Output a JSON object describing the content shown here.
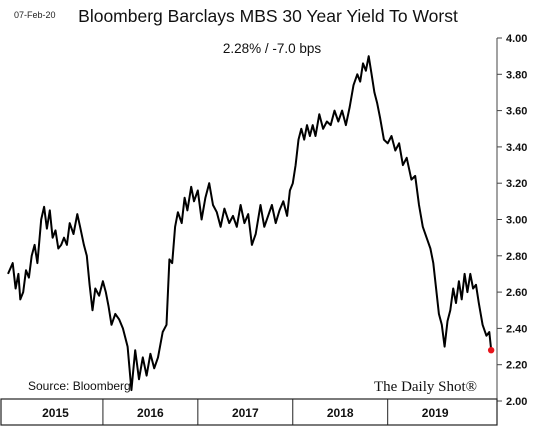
{
  "date_stamp": "07-Feb-20",
  "source": "Source: Bloomberg",
  "brand": "The Daily Shot®",
  "chart_data": {
    "type": "line",
    "title": "Bloomberg Barclays MBS 30 Year Yield To Worst",
    "subtitle": "2.28%  /  -7.0 bps",
    "ylim": [
      2.0,
      4.0
    ],
    "y_ticks": [
      "4.00",
      "3.80",
      "3.60",
      "3.40",
      "3.20",
      "3.00",
      "2.80",
      "2.60",
      "2.40",
      "2.20",
      "2.00"
    ],
    "x_categories": [
      "2015",
      "2016",
      "2017",
      "2018",
      "2019"
    ],
    "grid": false,
    "series": [
      {
        "color": "#000000",
        "last_point_color": "#e8141b",
        "points": [
          [
            2015.0,
            2.7
          ],
          [
            2015.05,
            2.76
          ],
          [
            2015.08,
            2.62
          ],
          [
            2015.11,
            2.7
          ],
          [
            2015.13,
            2.56
          ],
          [
            2015.16,
            2.6
          ],
          [
            2015.19,
            2.72
          ],
          [
            2015.22,
            2.68
          ],
          [
            2015.25,
            2.8
          ],
          [
            2015.28,
            2.86
          ],
          [
            2015.31,
            2.76
          ],
          [
            2015.35,
            3.0
          ],
          [
            2015.38,
            3.07
          ],
          [
            2015.41,
            2.95
          ],
          [
            2015.44,
            3.05
          ],
          [
            2015.47,
            2.9
          ],
          [
            2015.5,
            2.94
          ],
          [
            2015.53,
            2.84
          ],
          [
            2015.56,
            2.86
          ],
          [
            2015.59,
            2.9
          ],
          [
            2015.62,
            2.86
          ],
          [
            2015.65,
            2.98
          ],
          [
            2015.69,
            2.92
          ],
          [
            2015.73,
            3.03
          ],
          [
            2015.76,
            2.96
          ],
          [
            2015.8,
            2.86
          ],
          [
            2015.83,
            2.8
          ],
          [
            2015.86,
            2.64
          ],
          [
            2015.89,
            2.5
          ],
          [
            2015.92,
            2.62
          ],
          [
            2015.96,
            2.58
          ],
          [
            2016.0,
            2.66
          ],
          [
            2016.03,
            2.6
          ],
          [
            2016.06,
            2.52
          ],
          [
            2016.09,
            2.42
          ],
          [
            2016.13,
            2.48
          ],
          [
            2016.17,
            2.45
          ],
          [
            2016.21,
            2.4
          ],
          [
            2016.26,
            2.3
          ],
          [
            2016.3,
            2.06
          ],
          [
            2016.34,
            2.28
          ],
          [
            2016.38,
            2.12
          ],
          [
            2016.42,
            2.24
          ],
          [
            2016.46,
            2.14
          ],
          [
            2016.5,
            2.26
          ],
          [
            2016.54,
            2.18
          ],
          [
            2016.58,
            2.24
          ],
          [
            2016.63,
            2.38
          ],
          [
            2016.67,
            2.42
          ],
          [
            2016.7,
            2.78
          ],
          [
            2016.73,
            2.76
          ],
          [
            2016.76,
            2.96
          ],
          [
            2016.79,
            3.04
          ],
          [
            2016.83,
            2.98
          ],
          [
            2016.86,
            3.12
          ],
          [
            2016.89,
            3.05
          ],
          [
            2016.93,
            3.18
          ],
          [
            2016.96,
            3.1
          ],
          [
            2017.0,
            3.16
          ],
          [
            2017.04,
            3.0
          ],
          [
            2017.08,
            3.12
          ],
          [
            2017.12,
            3.2
          ],
          [
            2017.16,
            3.08
          ],
          [
            2017.2,
            3.04
          ],
          [
            2017.24,
            2.96
          ],
          [
            2017.28,
            3.06
          ],
          [
            2017.33,
            2.98
          ],
          [
            2017.37,
            3.02
          ],
          [
            2017.41,
            2.96
          ],
          [
            2017.45,
            3.08
          ],
          [
            2017.49,
            2.98
          ],
          [
            2017.53,
            3.03
          ],
          [
            2017.57,
            2.86
          ],
          [
            2017.61,
            2.92
          ],
          [
            2017.66,
            3.08
          ],
          [
            2017.7,
            2.96
          ],
          [
            2017.74,
            3.02
          ],
          [
            2017.78,
            3.08
          ],
          [
            2017.82,
            2.98
          ],
          [
            2017.86,
            3.05
          ],
          [
            2017.9,
            3.1
          ],
          [
            2017.94,
            3.02
          ],
          [
            2017.97,
            3.16
          ],
          [
            2018.0,
            3.2
          ],
          [
            2018.03,
            3.3
          ],
          [
            2018.06,
            3.44
          ],
          [
            2018.09,
            3.5
          ],
          [
            2018.12,
            3.44
          ],
          [
            2018.15,
            3.52
          ],
          [
            2018.18,
            3.46
          ],
          [
            2018.21,
            3.52
          ],
          [
            2018.24,
            3.46
          ],
          [
            2018.28,
            3.58
          ],
          [
            2018.32,
            3.5
          ],
          [
            2018.36,
            3.54
          ],
          [
            2018.4,
            3.52
          ],
          [
            2018.44,
            3.6
          ],
          [
            2018.48,
            3.54
          ],
          [
            2018.52,
            3.6
          ],
          [
            2018.56,
            3.52
          ],
          [
            2018.6,
            3.62
          ],
          [
            2018.64,
            3.74
          ],
          [
            2018.68,
            3.8
          ],
          [
            2018.71,
            3.76
          ],
          [
            2018.74,
            3.86
          ],
          [
            2018.77,
            3.82
          ],
          [
            2018.8,
            3.9
          ],
          [
            2018.83,
            3.8
          ],
          [
            2018.86,
            3.7
          ],
          [
            2018.89,
            3.64
          ],
          [
            2018.92,
            3.56
          ],
          [
            2018.96,
            3.44
          ],
          [
            2019.0,
            3.42
          ],
          [
            2019.04,
            3.46
          ],
          [
            2019.08,
            3.38
          ],
          [
            2019.12,
            3.42
          ],
          [
            2019.16,
            3.3
          ],
          [
            2019.2,
            3.34
          ],
          [
            2019.25,
            3.22
          ],
          [
            2019.29,
            3.24
          ],
          [
            2019.33,
            3.08
          ],
          [
            2019.37,
            2.96
          ],
          [
            2019.41,
            2.9
          ],
          [
            2019.45,
            2.84
          ],
          [
            2019.48,
            2.76
          ],
          [
            2019.51,
            2.62
          ],
          [
            2019.54,
            2.48
          ],
          [
            2019.57,
            2.42
          ],
          [
            2019.6,
            2.3
          ],
          [
            2019.63,
            2.44
          ],
          [
            2019.66,
            2.5
          ],
          [
            2019.69,
            2.62
          ],
          [
            2019.72,
            2.54
          ],
          [
            2019.75,
            2.66
          ],
          [
            2019.78,
            2.56
          ],
          [
            2019.81,
            2.7
          ],
          [
            2019.84,
            2.6
          ],
          [
            2019.87,
            2.7
          ],
          [
            2019.9,
            2.62
          ],
          [
            2019.93,
            2.64
          ],
          [
            2019.96,
            2.54
          ],
          [
            2020.0,
            2.42
          ],
          [
            2020.04,
            2.36
          ],
          [
            2020.07,
            2.38
          ],
          [
            2020.09,
            2.28
          ]
        ]
      }
    ]
  }
}
